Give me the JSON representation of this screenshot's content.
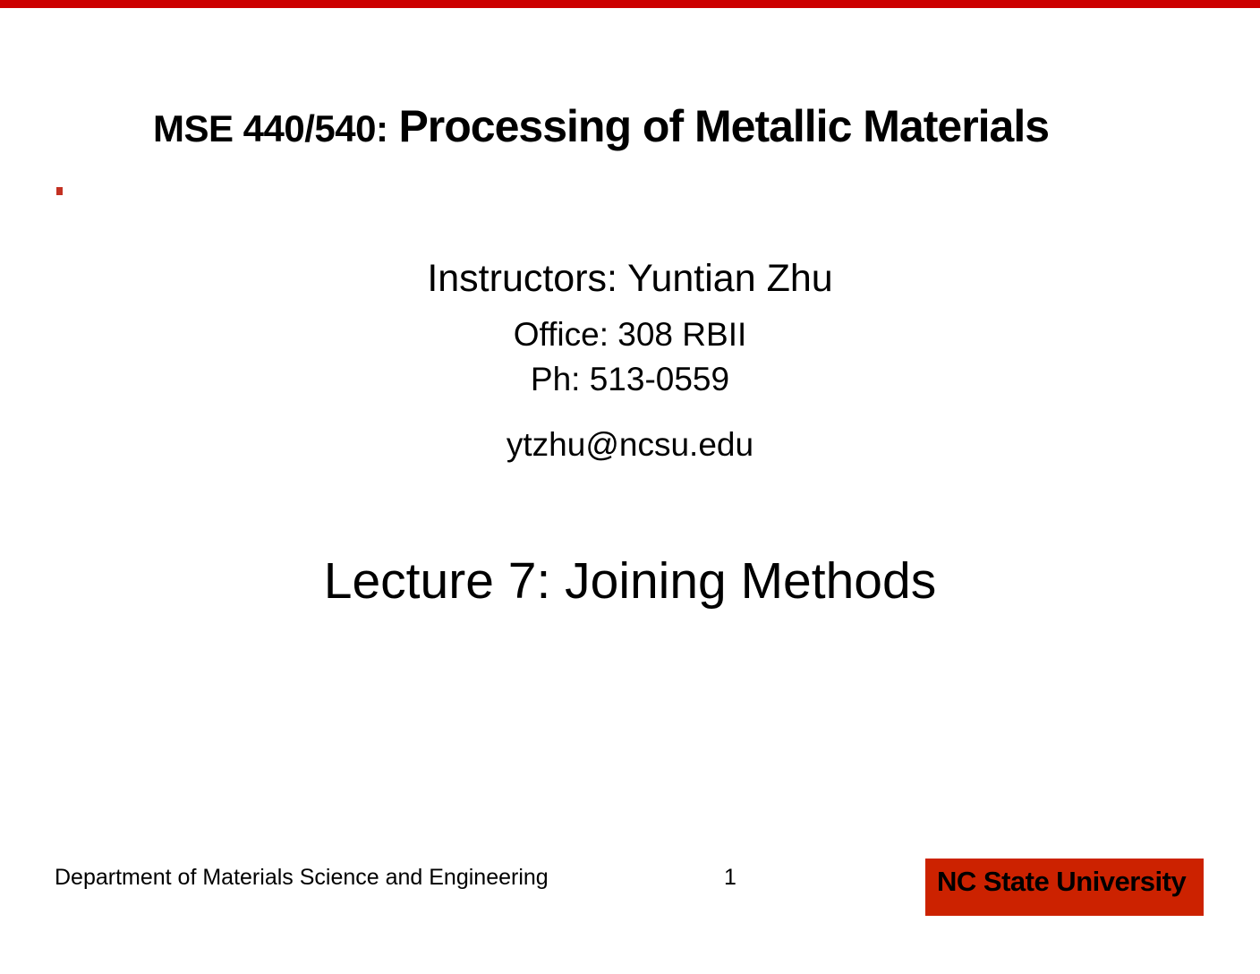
{
  "slide": {
    "accent_colors": {
      "top_bar": "#cc0000",
      "bullet": "#c33122",
      "brand_box": "#cc2200"
    },
    "header": {
      "course_code": "MSE 440/540:",
      "course_title": "Processing of Metallic Materials"
    },
    "info_block": {
      "instructors": "Instructors: Yuntian Zhu",
      "office": "Office: 308 RBII",
      "phone": "Ph: 513-0559",
      "email": "ytzhu@ncsu.edu"
    },
    "lecture_title": "Lecture 7: Joining Methods",
    "footer": {
      "department": "Department of Materials Science and Engineering",
      "page_number": "1",
      "institution": "NC State University"
    }
  }
}
